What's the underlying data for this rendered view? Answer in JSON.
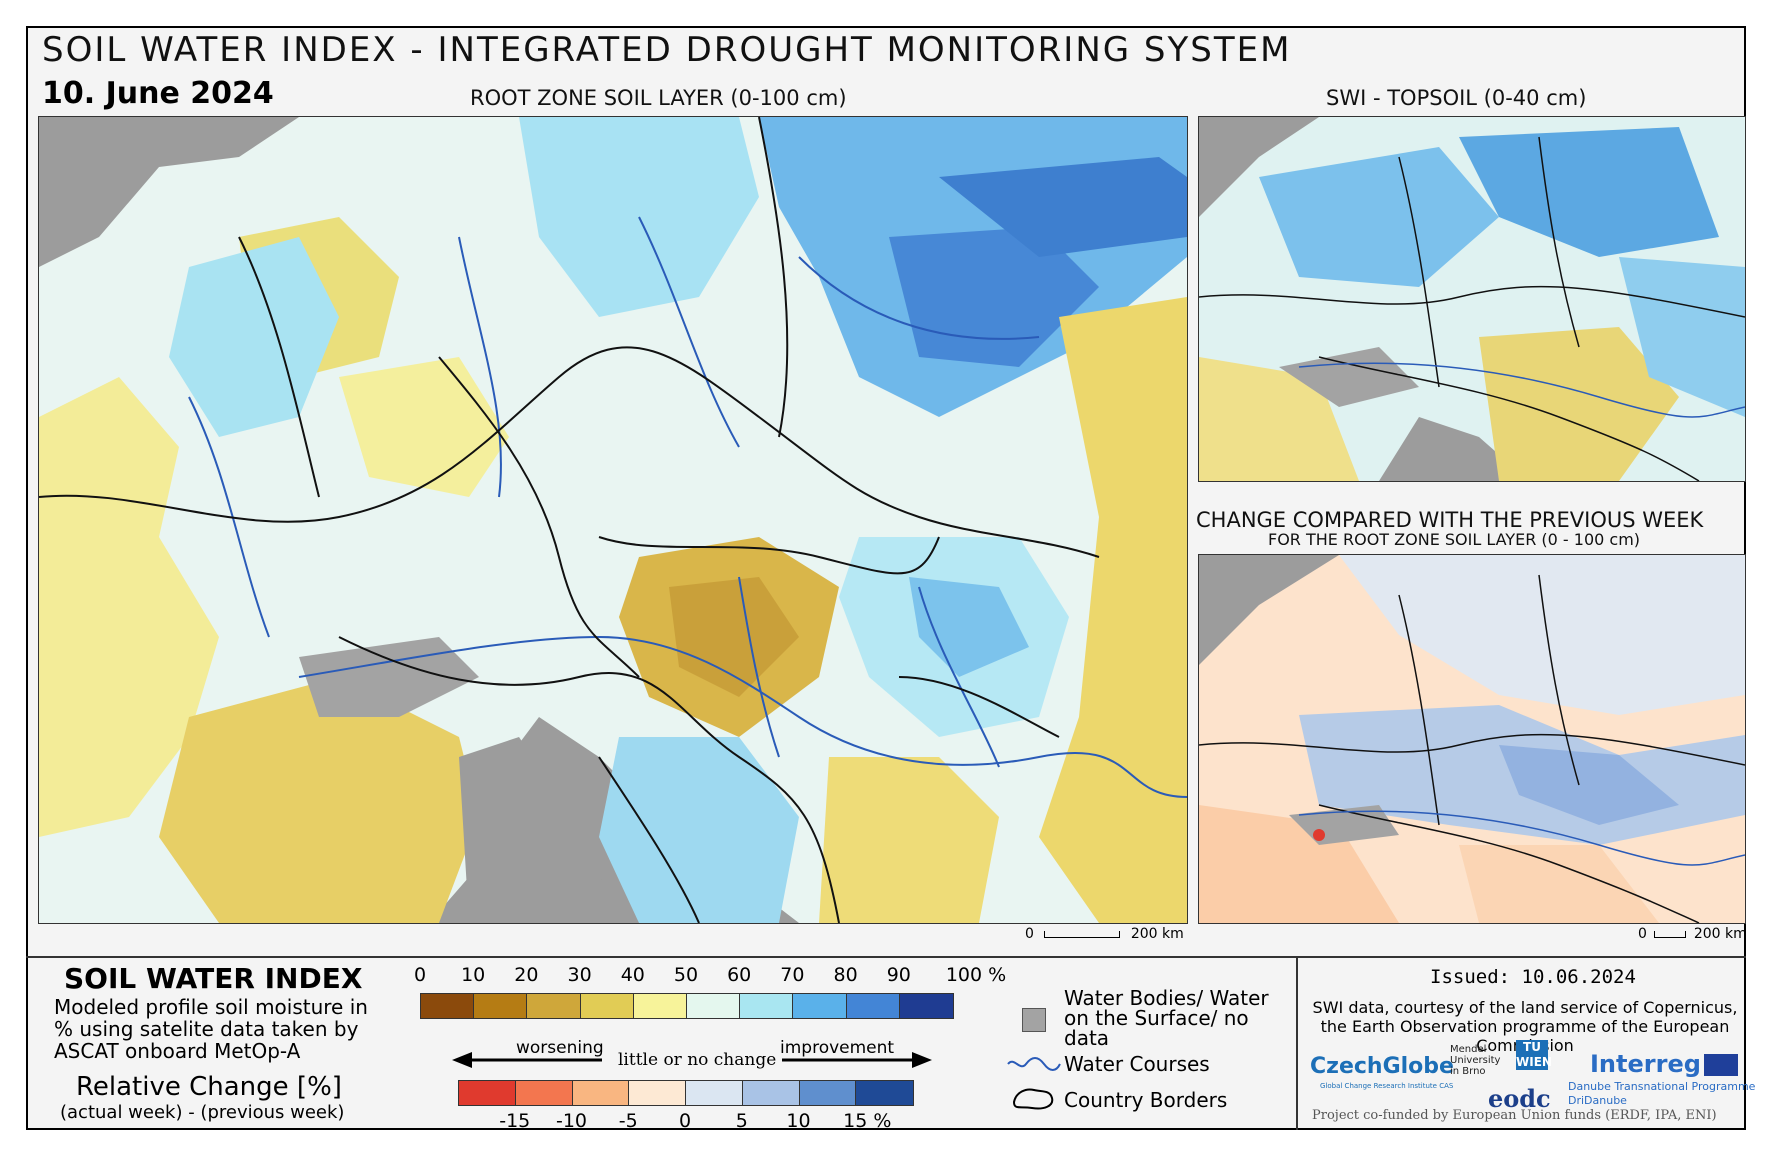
{
  "title": "SOIL WATER INDEX - INTEGRATED DROUGHT MONITORING SYSTEM",
  "date": "10. June 2024",
  "main_map": {
    "title": "ROOT ZONE SOIL LAYER (0-100 cm)",
    "scale_start": "0",
    "scale_end": "200 km"
  },
  "topsoil_map": {
    "title": "SWI - TOPSOIL (0-40 cm)"
  },
  "change_map": {
    "title": "CHANGE COMPARED WITH THE PREVIOUS WEEK",
    "subtitle": "FOR THE ROOT ZONE SOIL LAYER (0 - 100 cm)",
    "scale_start": "0",
    "scale_end": "200 km"
  },
  "legend": {
    "swi_heading": "SOIL WATER INDEX",
    "swi_description": "Modeled profile soil moisture in % using satelite data taken by ASCAT onboard MetOp-A",
    "swi_ticks": [
      "0",
      "10",
      "20",
      "30",
      "40",
      "50",
      "60",
      "70",
      "80",
      "90",
      "100 %"
    ],
    "swi_colors": [
      "#8b4a0c",
      "#b57c14",
      "#cfa73a",
      "#e1cc55",
      "#f7f39a",
      "#e4f7ee",
      "#a9e6f1",
      "#5ab1ea",
      "#4385d6",
      "#1f3c92"
    ],
    "rel_heading": "Relative Change [%]",
    "rel_sub": "(actual week) - (previous week)",
    "worsening": "worsening",
    "no_change": "little or no change",
    "improvement": "improvement",
    "rel_ticks": [
      "-15",
      "-10",
      "-5",
      "0",
      "5",
      "10",
      "15 %"
    ],
    "rel_colors": [
      "#e03a2e",
      "#f3764f",
      "#f9b681",
      "#fde9d4",
      "#dbe6f2",
      "#a9c3e6",
      "#5f8fce",
      "#1f4a96"
    ],
    "water_bodies": "Water Bodies/ Water on the Surface/ no data",
    "water_courses": "Water Courses",
    "country_borders": "Country Borders"
  },
  "footer": {
    "issued": "Issued: 10.06.2024",
    "credit": "SWI data, courtesy of the land service of Copernicus, the Earth Observation programme of the European Commission",
    "logo_czechglobe": "CzechGlobe",
    "logo_czechglobe_sub": "Global Change Research Institute CAS",
    "logo_mendel": "Mendel University in Brno",
    "logo_tu": "TU WIEN",
    "logo_eodc": "eodc",
    "logo_interreg": "Interreg",
    "logo_interreg_sub1": "Danube Transnational Programme",
    "logo_interreg_sub2": "DriDanube",
    "funded": "Project co-funded by European Union funds (ERDF, IPA, ENI)"
  }
}
